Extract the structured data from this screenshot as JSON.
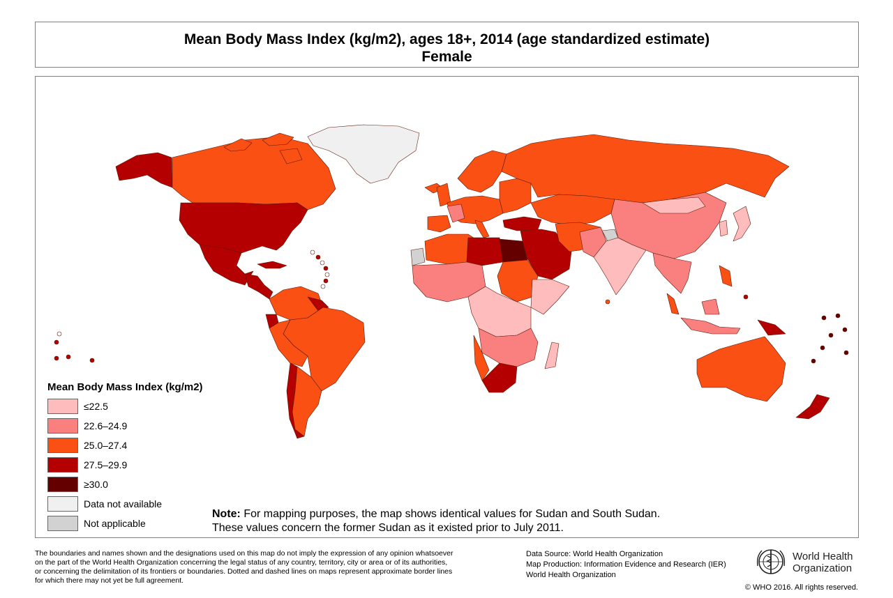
{
  "title": {
    "line1": "Mean Body Mass Index (kg/m2), ages 18+, 2014 (age standardized estimate)",
    "line2": "Female"
  },
  "legend": {
    "title": "Mean Body Mass Index (kg/m2)",
    "items": [
      {
        "label": "≤22.5",
        "color": "#FFBCBC"
      },
      {
        "label": "22.6–24.9",
        "color": "#FA8080"
      },
      {
        "label": "25.0–27.4",
        "color": "#FA5014"
      },
      {
        "label": "27.5–29.9",
        "color": "#B40000"
      },
      {
        "label": "≥30.0",
        "color": "#640000"
      },
      {
        "label": "Data not available",
        "color": "#F0F0F0"
      },
      {
        "label": "Not applicable",
        "color": "#D2D2D2"
      }
    ]
  },
  "note": {
    "label": "Note:",
    "line1": " For mapping purposes, the map shows identical values for Sudan and South Sudan.",
    "line2": "These values concern the former Sudan as it existed prior to July 2011."
  },
  "disclaimer": {
    "line1": "The boundaries and names shown and the designations used on this map do not imply the expression of any opinion whatsoever",
    "line2": "on the part of the World Health Organization concerning the legal status of any country, territory, city or area or of its authorities,",
    "line3": "or concerning the delimitation of its frontiers or boundaries. Dotted and dashed lines on maps represent approximate border lines",
    "line4": "for which there may not yet be full agreement."
  },
  "source": {
    "line1": "Data Source: World Health Organization",
    "line2": "Map Production: Information Evidence and Research (IER)",
    "line3": "World Health Organization"
  },
  "logo": {
    "line1": "World Health",
    "line2": "Organization"
  },
  "copyright": "© WHO 2016. All rights reserved."
}
